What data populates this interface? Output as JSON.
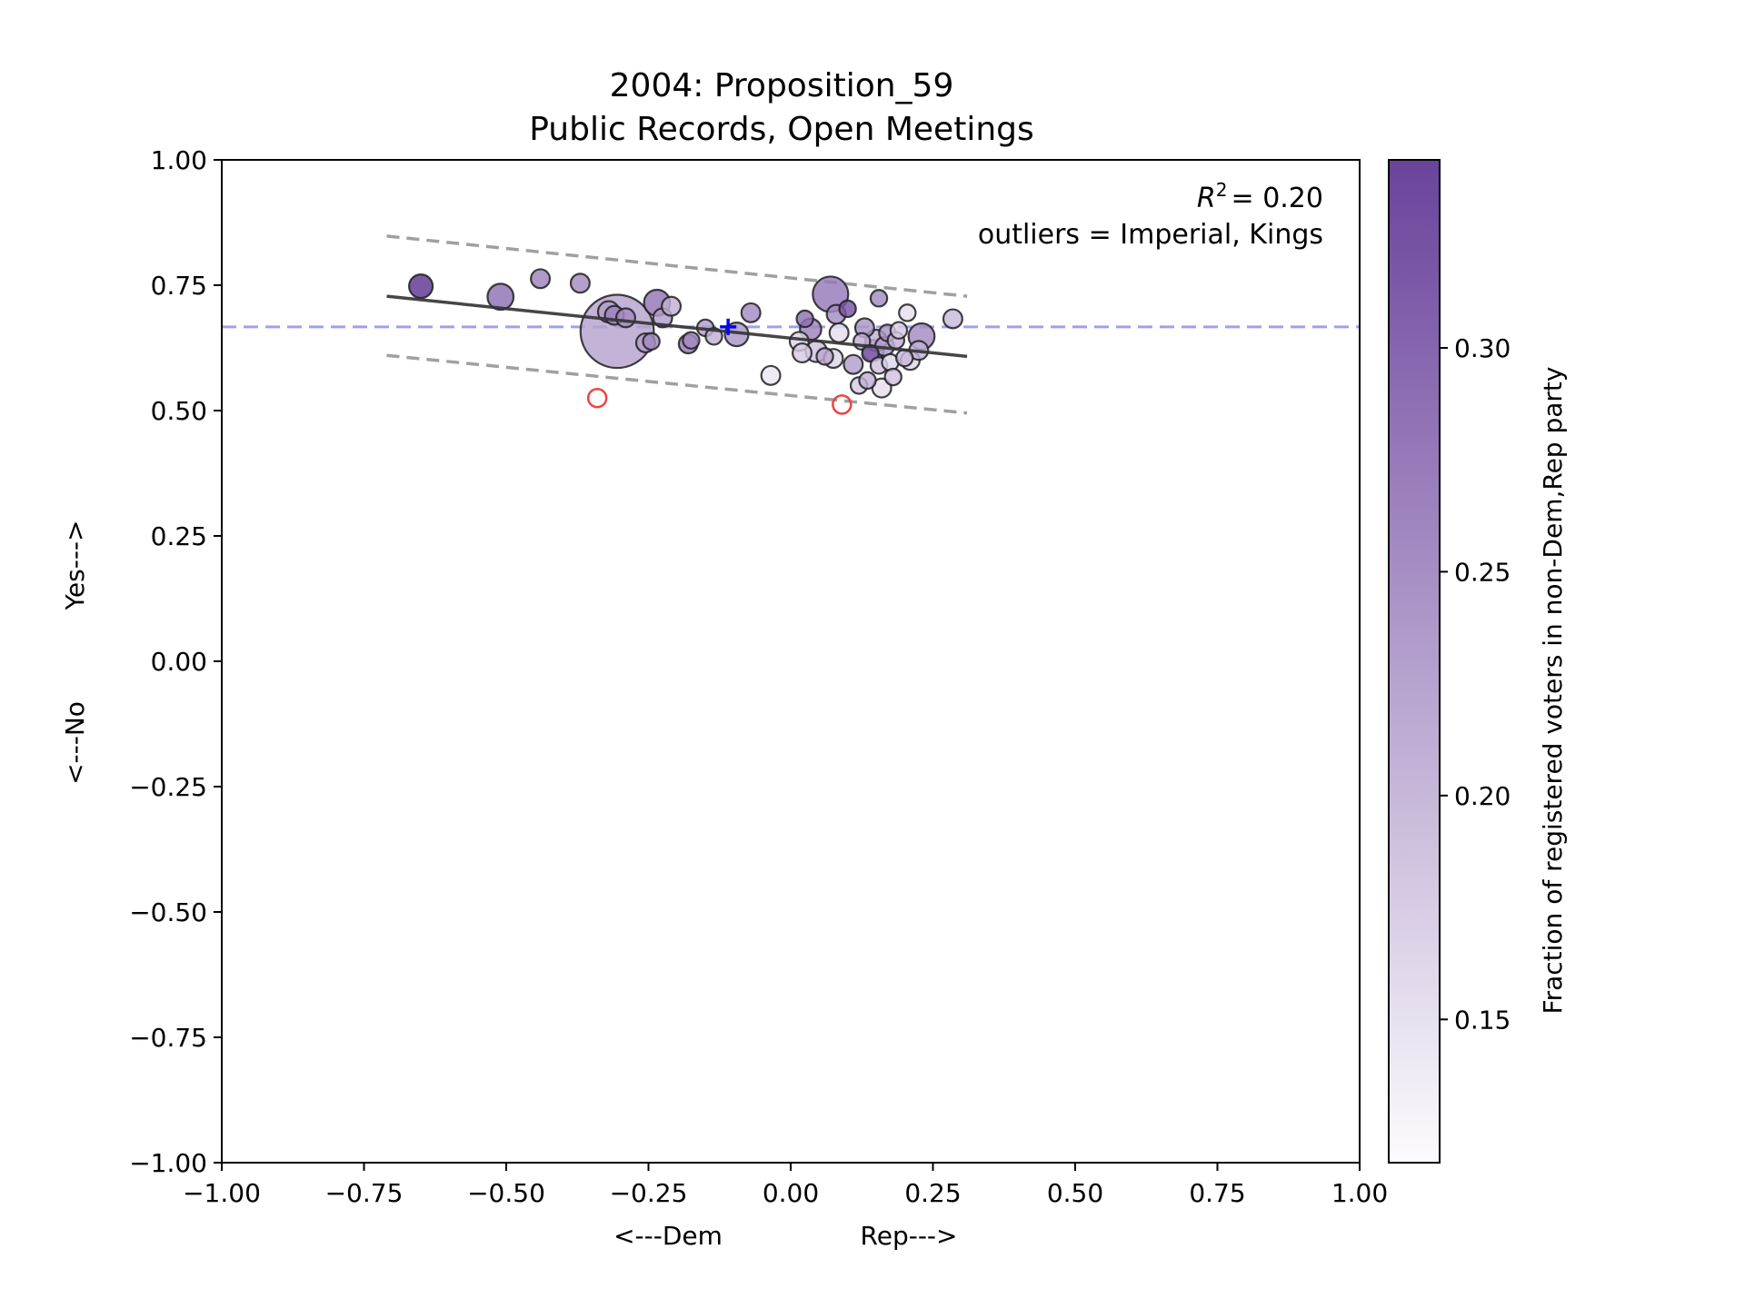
{
  "chart_data": {
    "type": "scatter",
    "title": "2004: Proposition_59",
    "subtitle": "Public Records, Open Meetings",
    "xlabel_left": "<---Dem",
    "xlabel_right": "Rep--->",
    "ylabel_bottom": "<---No",
    "ylabel_top": "Yes--->",
    "xlim": [
      -1.0,
      1.0
    ],
    "ylim": [
      -1.0,
      1.0
    ],
    "xticks": [
      -1.0,
      -0.75,
      -0.5,
      -0.25,
      0.0,
      0.25,
      0.5,
      0.75,
      1.0
    ],
    "yticks": [
      -1.0,
      -0.75,
      -0.5,
      -0.25,
      0.0,
      0.25,
      0.5,
      0.75,
      1.0
    ],
    "xtick_labels": [
      "−1.00",
      "−0.75",
      "−0.50",
      "−0.25",
      "0.00",
      "0.25",
      "0.50",
      "0.75",
      "1.00"
    ],
    "ytick_labels": [
      "−1.00",
      "−0.75",
      "−0.50",
      "−0.25",
      "0.00",
      "0.25",
      "0.50",
      "0.75",
      "1.00"
    ],
    "annotation_r2": "= 0.20",
    "annotation_outliers": "outliers = Imperial, Kings",
    "reference_line_y": 0.667,
    "reference_line_color": "#8888ee",
    "mean_marker": {
      "x": -0.11,
      "y": 0.667,
      "color": "#0000ff"
    },
    "regression": {
      "x0": -0.71,
      "y0": 0.728,
      "x1": 0.31,
      "y1": 0.608
    },
    "band_upper": {
      "x0": -0.71,
      "y0": 0.848,
      "x1": 0.31,
      "y1": 0.728
    },
    "band_lower": {
      "x0": -0.71,
      "y0": 0.61,
      "x1": 0.31,
      "y1": 0.495
    },
    "outliers": [
      {
        "name": "Imperial",
        "x": -0.34,
        "y": 0.525
      },
      {
        "name": "Kings",
        "x": 0.09,
        "y": 0.512
      }
    ],
    "colorbar": {
      "label": "Fraction of registered voters in non-Dem,Rep party",
      "range": [
        0.118,
        0.342
      ],
      "ticks": [
        0.15,
        0.2,
        0.25,
        0.3
      ],
      "tick_labels": [
        "0.15",
        "0.20",
        "0.25",
        "0.30"
      ],
      "color_low": "#fcfbfd",
      "color_high": "#5a2e91"
    },
    "points": [
      {
        "x": -0.65,
        "y": 0.748,
        "s": 10,
        "c": 0.335
      },
      {
        "x": -0.51,
        "y": 0.727,
        "s": 11,
        "c": 0.27
      },
      {
        "x": -0.44,
        "y": 0.763,
        "s": 8,
        "c": 0.25
      },
      {
        "x": -0.37,
        "y": 0.754,
        "s": 8,
        "c": 0.24
      },
      {
        "x": -0.305,
        "y": 0.658,
        "s": 31,
        "c": 0.215
      },
      {
        "x": -0.32,
        "y": 0.697,
        "s": 9,
        "c": 0.22
      },
      {
        "x": -0.31,
        "y": 0.69,
        "s": 8,
        "c": 0.25
      },
      {
        "x": -0.29,
        "y": 0.685,
        "s": 8,
        "c": 0.24
      },
      {
        "x": -0.235,
        "y": 0.715,
        "s": 11,
        "c": 0.265
      },
      {
        "x": -0.225,
        "y": 0.685,
        "s": 8,
        "c": 0.22
      },
      {
        "x": -0.21,
        "y": 0.708,
        "s": 8,
        "c": 0.2
      },
      {
        "x": -0.255,
        "y": 0.635,
        "s": 8,
        "c": 0.22
      },
      {
        "x": -0.245,
        "y": 0.638,
        "s": 7,
        "c": 0.24
      },
      {
        "x": -0.18,
        "y": 0.633,
        "s": 8,
        "c": 0.26
      },
      {
        "x": -0.175,
        "y": 0.64,
        "s": 7,
        "c": 0.24
      },
      {
        "x": -0.15,
        "y": 0.665,
        "s": 7,
        "c": 0.22
      },
      {
        "x": -0.135,
        "y": 0.648,
        "s": 7,
        "c": 0.2
      },
      {
        "x": -0.095,
        "y": 0.652,
        "s": 10,
        "c": 0.23
      },
      {
        "x": -0.07,
        "y": 0.695,
        "s": 8,
        "c": 0.24
      },
      {
        "x": -0.035,
        "y": 0.57,
        "s": 8,
        "c": 0.14
      },
      {
        "x": 0.015,
        "y": 0.638,
        "s": 8,
        "c": 0.16
      },
      {
        "x": 0.02,
        "y": 0.615,
        "s": 8,
        "c": 0.17
      },
      {
        "x": 0.025,
        "y": 0.683,
        "s": 7,
        "c": 0.27
      },
      {
        "x": 0.035,
        "y": 0.662,
        "s": 9,
        "c": 0.25
      },
      {
        "x": 0.045,
        "y": 0.618,
        "s": 9,
        "c": 0.18
      },
      {
        "x": 0.06,
        "y": 0.608,
        "s": 7,
        "c": 0.21
      },
      {
        "x": 0.07,
        "y": 0.732,
        "s": 15,
        "c": 0.26
      },
      {
        "x": 0.075,
        "y": 0.604,
        "s": 8,
        "c": 0.16
      },
      {
        "x": 0.08,
        "y": 0.692,
        "s": 8,
        "c": 0.24
      },
      {
        "x": 0.085,
        "y": 0.655,
        "s": 8,
        "c": 0.15
      },
      {
        "x": 0.1,
        "y": 0.703,
        "s": 7,
        "c": 0.3
      },
      {
        "x": 0.11,
        "y": 0.592,
        "s": 8,
        "c": 0.22
      },
      {
        "x": 0.12,
        "y": 0.55,
        "s": 7,
        "c": 0.17
      },
      {
        "x": 0.125,
        "y": 0.638,
        "s": 7,
        "c": 0.2
      },
      {
        "x": 0.13,
        "y": 0.665,
        "s": 8,
        "c": 0.23
      },
      {
        "x": 0.135,
        "y": 0.56,
        "s": 7,
        "c": 0.2
      },
      {
        "x": 0.14,
        "y": 0.614,
        "s": 7,
        "c": 0.29
      },
      {
        "x": 0.145,
        "y": 0.62,
        "s": 9,
        "c": 0.26
      },
      {
        "x": 0.15,
        "y": 0.64,
        "s": 9,
        "c": 0.2
      },
      {
        "x": 0.155,
        "y": 0.59,
        "s": 7,
        "c": 0.18
      },
      {
        "x": 0.155,
        "y": 0.724,
        "s": 7,
        "c": 0.24
      },
      {
        "x": 0.16,
        "y": 0.545,
        "s": 8,
        "c": 0.15
      },
      {
        "x": 0.165,
        "y": 0.628,
        "s": 8,
        "c": 0.22
      },
      {
        "x": 0.17,
        "y": 0.655,
        "s": 7,
        "c": 0.23
      },
      {
        "x": 0.175,
        "y": 0.596,
        "s": 7,
        "c": 0.16
      },
      {
        "x": 0.18,
        "y": 0.567,
        "s": 7,
        "c": 0.18
      },
      {
        "x": 0.185,
        "y": 0.64,
        "s": 7,
        "c": 0.2
      },
      {
        "x": 0.19,
        "y": 0.66,
        "s": 7,
        "c": 0.17
      },
      {
        "x": 0.2,
        "y": 0.605,
        "s": 7,
        "c": 0.19
      },
      {
        "x": 0.205,
        "y": 0.695,
        "s": 7,
        "c": 0.15
      },
      {
        "x": 0.21,
        "y": 0.6,
        "s": 8,
        "c": 0.16
      },
      {
        "x": 0.225,
        "y": 0.62,
        "s": 8,
        "c": 0.2
      },
      {
        "x": 0.23,
        "y": 0.648,
        "s": 11,
        "c": 0.24
      },
      {
        "x": 0.285,
        "y": 0.683,
        "s": 8,
        "c": 0.19
      }
    ]
  }
}
